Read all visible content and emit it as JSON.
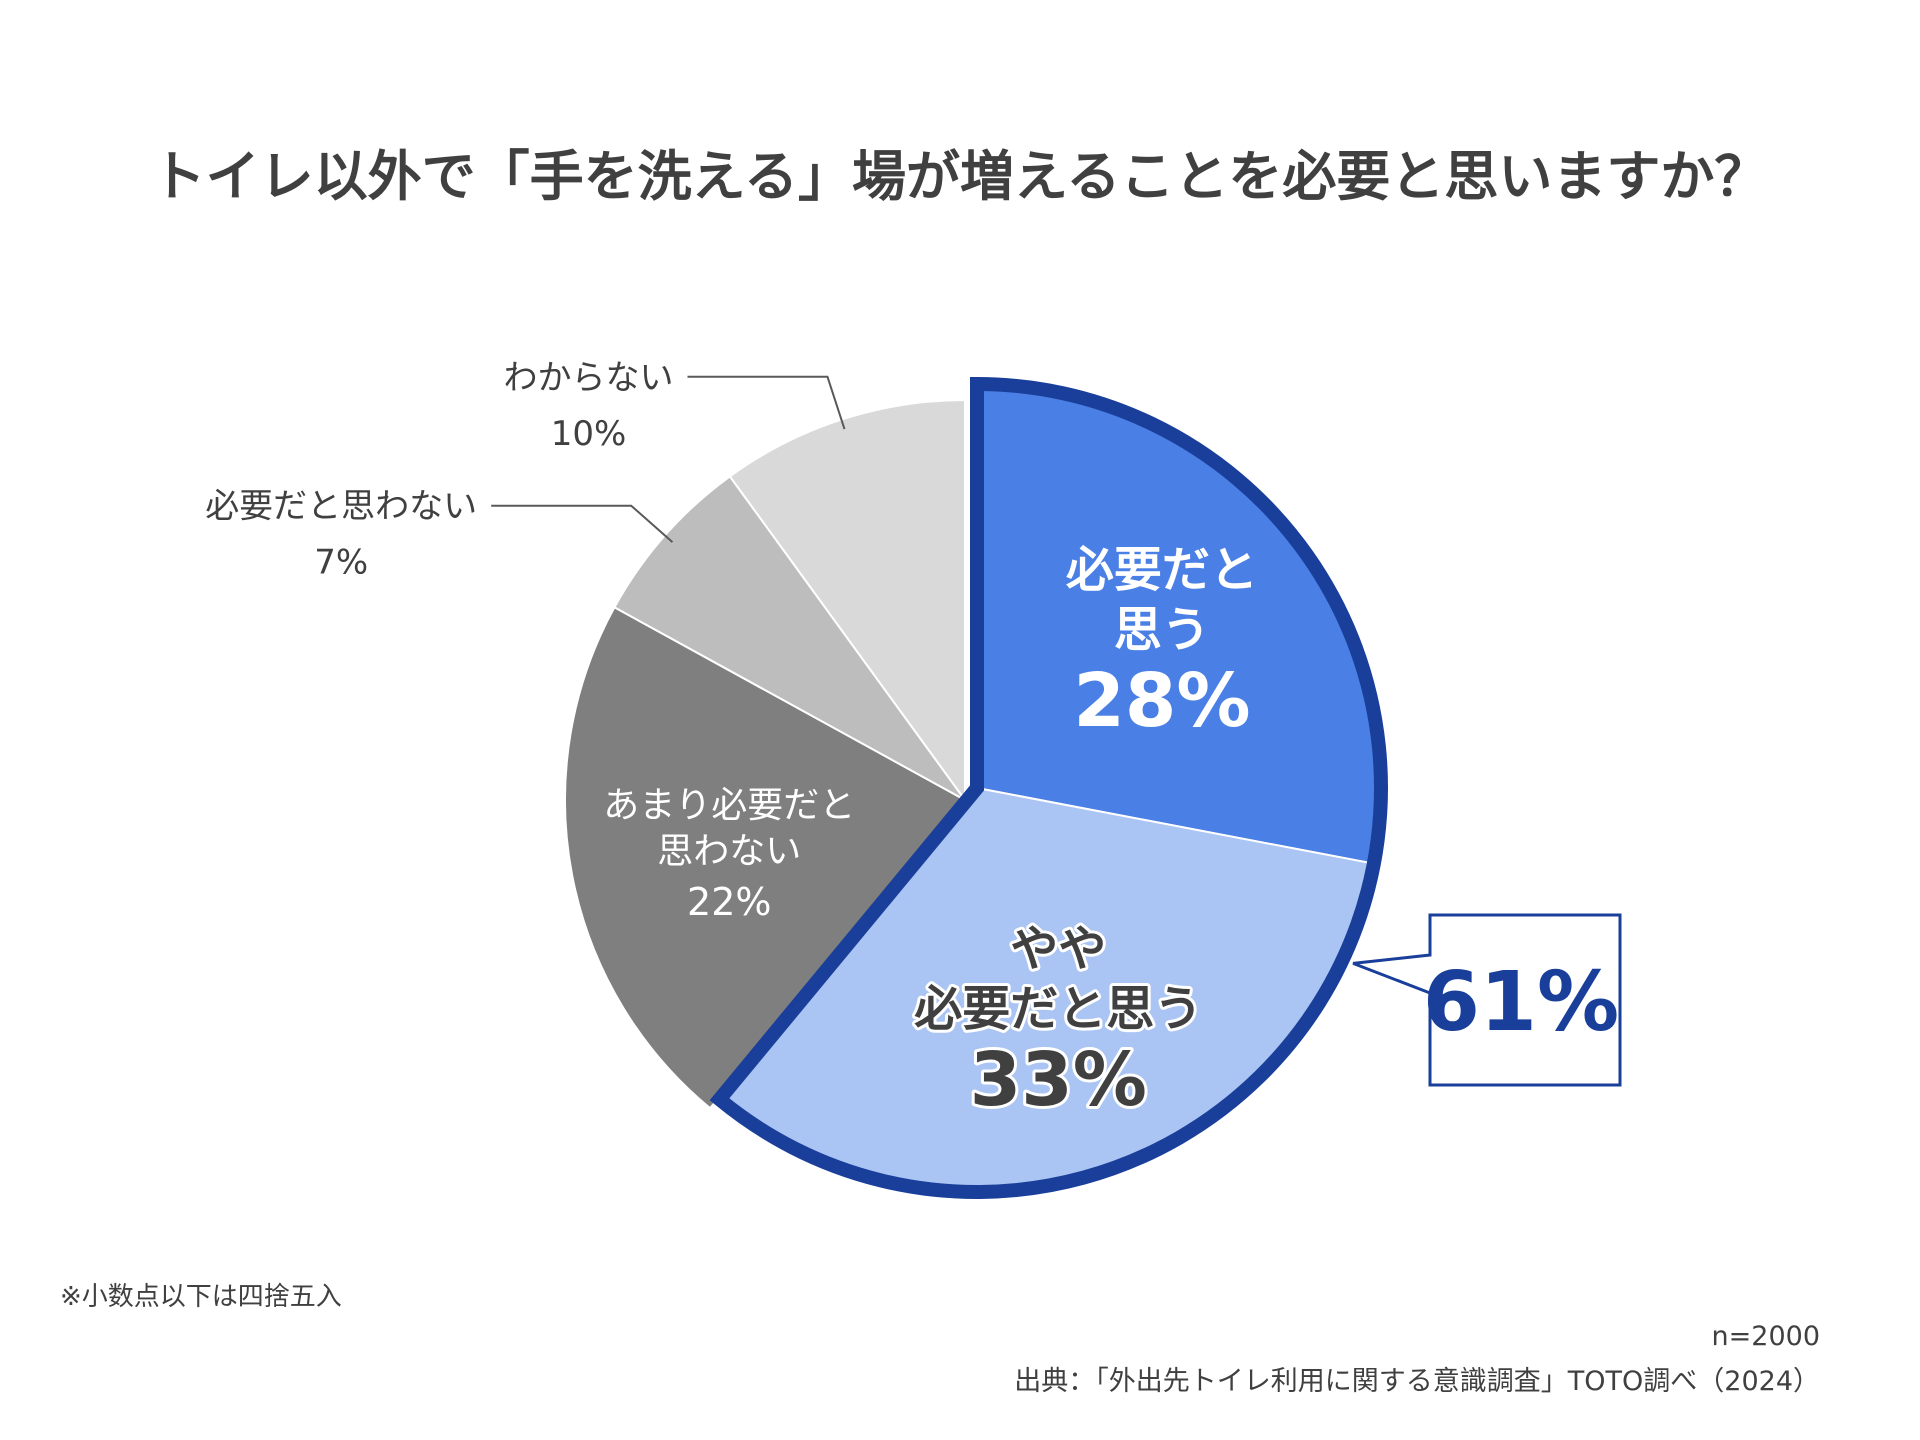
{
  "chart_data": {
    "type": "pie",
    "title": "トイレ以外で「手を洗える」場が増えることを必要と思いますか？",
    "slices": [
      {
        "label": "必要だと思う",
        "display_label": [
          "必要だと",
          "思う"
        ],
        "value": 28,
        "value_label": "28%",
        "color": "#4a7fe5",
        "label_color": "#ffffff"
      },
      {
        "label": "やや必要だと思う",
        "display_label": [
          "やや",
          "必要だと思う"
        ],
        "value": 33,
        "value_label": "33%",
        "color": "#aac4f3",
        "label_color": "#404040"
      },
      {
        "label": "あまり必要だと思わない",
        "display_label": [
          "あまり必要だと",
          "思わない"
        ],
        "value": 22,
        "value_label": "22%",
        "color": "#7f7f7f",
        "label_color": "#ffffff"
      },
      {
        "label": "必要だと思わない",
        "display_label": [
          "必要だと思わない"
        ],
        "value": 7,
        "value_label": "7%",
        "color": "#bdbdbd",
        "label_color": "#404040"
      },
      {
        "label": "わからない",
        "display_label": [
          "わからない"
        ],
        "value": 10,
        "value_label": "10%",
        "color": "#d9d9d9",
        "label_color": "#404040"
      }
    ],
    "highlight": {
      "group": [
        "必要だと思う",
        "やや必要だと思う"
      ],
      "value_label": "61%",
      "color": "#1a3f9a"
    },
    "note": "※小数点以下は四捨五入",
    "sample_size": "n=2000",
    "source": "出典：「外出先トイレ利用に関する意識調査」TOTO調べ（2024）"
  }
}
